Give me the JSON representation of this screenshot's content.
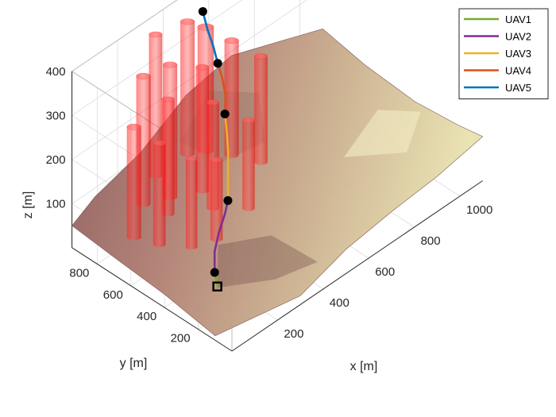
{
  "chart_data": {
    "type": "3d-line",
    "title": "",
    "xlabel": "x [m]",
    "ylabel": "y [m]",
    "zlabel": "z [m]",
    "xlim": [
      0,
      1100
    ],
    "ylim": [
      0,
      950
    ],
    "zlim": [
      0,
      400
    ],
    "x_ticks": [
      "200",
      "400",
      "600",
      "800",
      "1000"
    ],
    "y_ticks": [
      "200",
      "400",
      "600",
      "800"
    ],
    "z_ticks": [
      "100",
      "200",
      "300",
      "400"
    ],
    "grid": true,
    "legend_position": "top-right",
    "series": [
      {
        "name": "UAV1",
        "color": "#77ac30",
        "x": [
          165,
          165,
          165
        ],
        "y": [
          310,
          318,
          326
        ],
        "z": [
          12,
          28,
          40
        ]
      },
      {
        "name": "UAV2",
        "color": "#7e2f8e",
        "x": [
          165,
          190,
          230,
          265,
          300
        ],
        "y": [
          326,
          360,
          390,
          400,
          430
        ],
        "z": [
          40,
          70,
          90,
          120,
          130
        ]
      },
      {
        "name": "UAV3",
        "color": "#edb120",
        "x": [
          300,
          330,
          360,
          380,
          405
        ],
        "y": [
          430,
          470,
          510,
          545,
          590
        ],
        "z": [
          130,
          160,
          200,
          230,
          250
        ]
      },
      {
        "name": "UAV4",
        "color": "#d95319",
        "x": [
          405,
          430,
          445,
          455
        ],
        "y": [
          590,
          620,
          660,
          700
        ],
        "z": [
          250,
          275,
          300,
          320
        ]
      },
      {
        "name": "UAV5",
        "color": "#0072bd",
        "x": [
          455,
          465,
          470,
          478
        ],
        "y": [
          700,
          740,
          780,
          820
        ],
        "z": [
          320,
          345,
          370,
          400
        ]
      }
    ],
    "waypoints": [
      {
        "x": 165,
        "y": 326,
        "z": 40
      },
      {
        "x": 300,
        "y": 430,
        "z": 130
      },
      {
        "x": 405,
        "y": 590,
        "z": 250
      },
      {
        "x": 455,
        "y": 700,
        "z": 320
      },
      {
        "x": 478,
        "y": 820,
        "z": 400
      }
    ],
    "start": {
      "x": 165,
      "y": 310,
      "z": 12
    },
    "obstacles": [
      {
        "x": 80,
        "y": 690,
        "r": 30,
        "h": 250
      },
      {
        "x": 110,
        "y": 580,
        "r": 26,
        "h": 230
      },
      {
        "x": 210,
        "y": 810,
        "r": 30,
        "h": 290
      },
      {
        "x": 230,
        "y": 690,
        "r": 26,
        "h": 260
      },
      {
        "x": 290,
        "y": 760,
        "r": 30,
        "h": 300
      },
      {
        "x": 330,
        "y": 900,
        "r": 28,
        "h": 320
      },
      {
        "x": 345,
        "y": 580,
        "r": 26,
        "h": 240
      },
      {
        "x": 380,
        "y": 690,
        "r": 28,
        "h": 280
      },
      {
        "x": 470,
        "y": 900,
        "r": 30,
        "h": 300
      },
      {
        "x": 520,
        "y": 860,
        "r": 34,
        "h": 280
      },
      {
        "x": 560,
        "y": 760,
        "r": 30,
        "h": 260
      },
      {
        "x": 600,
        "y": 640,
        "r": 28,
        "h": 240
      },
      {
        "x": 420,
        "y": 470,
        "r": 26,
        "h": 200
      },
      {
        "x": 250,
        "y": 430,
        "r": 26,
        "h": 180
      },
      {
        "x": 170,
        "y": 470,
        "r": 24,
        "h": 200
      }
    ]
  }
}
